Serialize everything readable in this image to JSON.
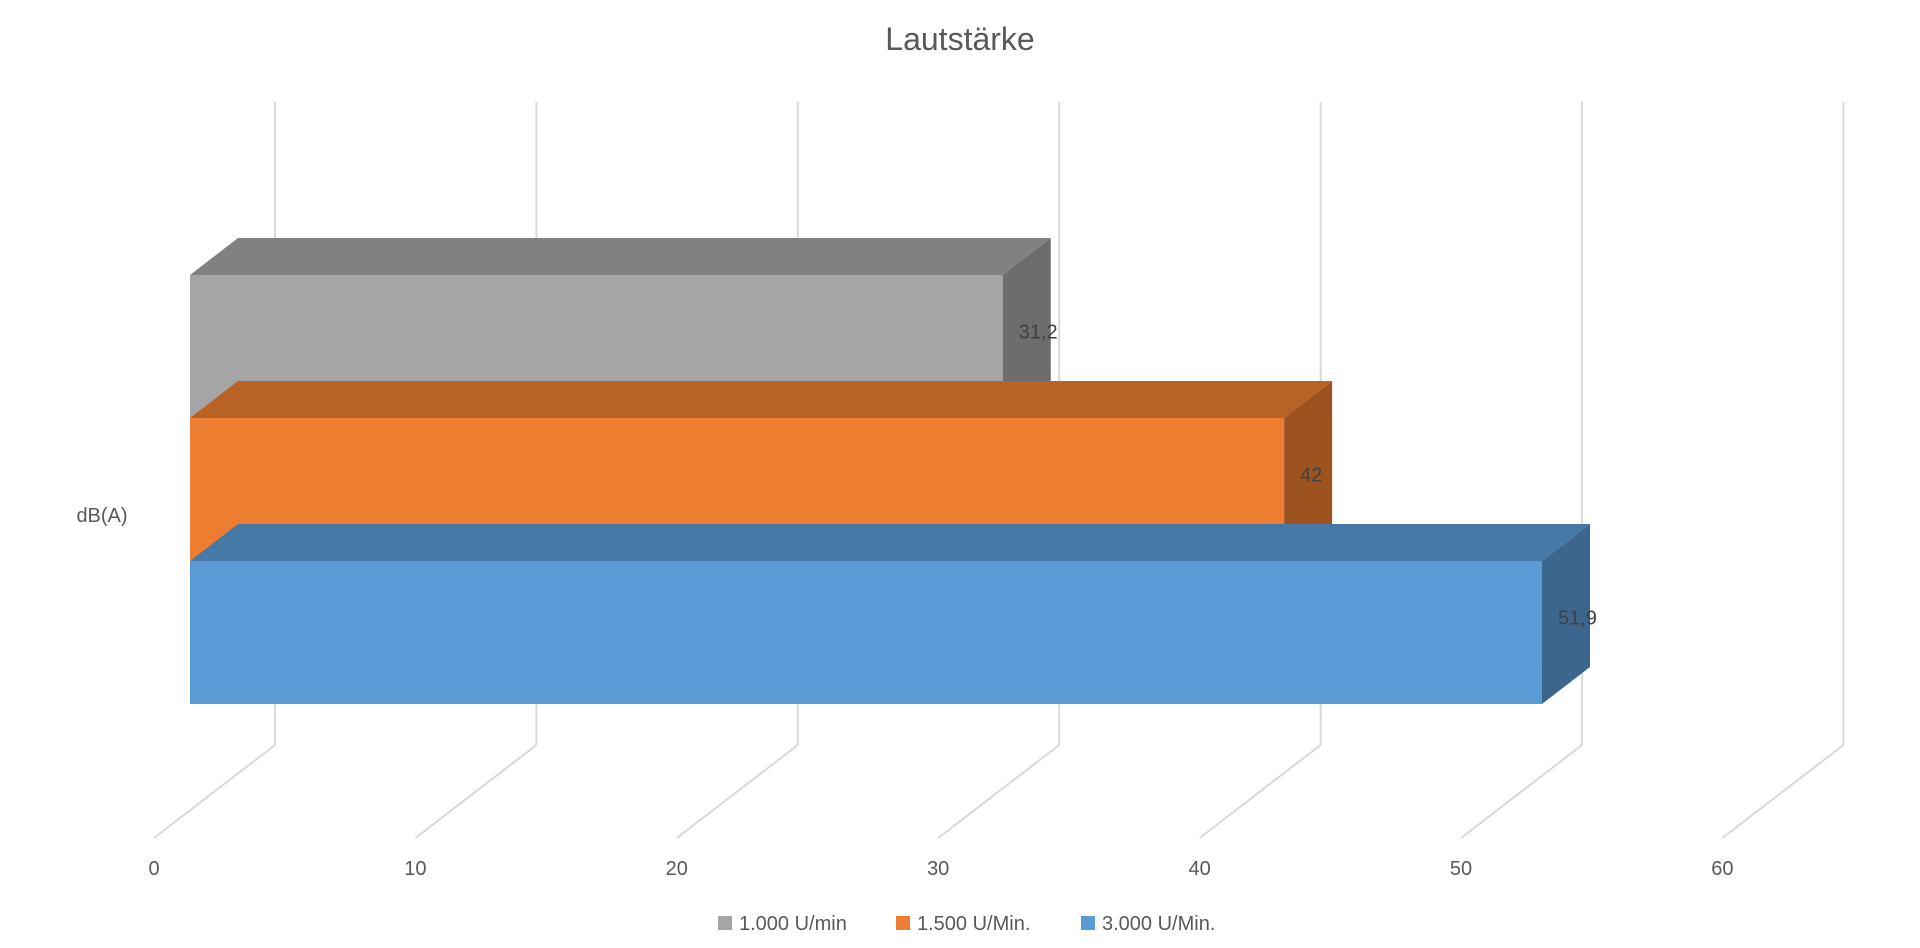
{
  "chart_data": {
    "type": "bar",
    "orientation": "horizontal",
    "style": "3d",
    "title": "Lautstärke",
    "categories": [
      "dB(A)"
    ],
    "xlim": [
      0,
      60
    ],
    "xticks": [
      0,
      10,
      20,
      30,
      40,
      50,
      60
    ],
    "xtick_labels": [
      "0",
      "10",
      "20",
      "30",
      "40",
      "50",
      "60"
    ],
    "grid": true,
    "legend_position": "bottom",
    "series": [
      {
        "name": "1.000 U/min",
        "values": [
          31.2
        ],
        "label": "31,2",
        "color": "#a5a5a5"
      },
      {
        "name": "1.500 U/Min.",
        "values": [
          42
        ],
        "label": "42",
        "color": "#ed7d31"
      },
      {
        "name": "3.000 U/Min.",
        "values": [
          51.9
        ],
        "label": "51,9",
        "color": "#5b9bd5"
      }
    ]
  }
}
